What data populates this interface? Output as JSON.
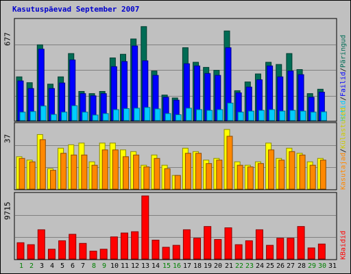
{
  "title": "Kasutuspäevad September 2007",
  "colors": {
    "background": "#c0c0c0",
    "pages": "#006c55",
    "files": "#0000ff",
    "hits": "#00ccff",
    "visits": "#ffff00",
    "sites": "#ff8800",
    "kbytes": "#ff0000",
    "weekend_label": "#008000",
    "title": "#0000cc"
  },
  "chart_data": [
    {
      "type": "bar",
      "name": "top",
      "ymax_label": "677",
      "ylim": [
        0,
        677
      ],
      "legend": [
        "Hitid",
        "Failid",
        "Päringud"
      ],
      "categories": [
        "1",
        "2",
        "3",
        "4",
        "5",
        "6",
        "7",
        "8",
        "9",
        "10",
        "11",
        "12",
        "13",
        "14",
        "15",
        "16",
        "17",
        "18",
        "19",
        "20",
        "21",
        "22",
        "23",
        "24",
        "25",
        "26",
        "27",
        "28",
        "29",
        "30"
      ],
      "series": [
        {
          "key": "pages",
          "values": [
            300,
            260,
            520,
            250,
            300,
            460,
            200,
            185,
            200,
            430,
            455,
            560,
            645,
            340,
            175,
            155,
            500,
            400,
            365,
            345,
            615,
            205,
            265,
            320,
            400,
            385,
            460,
            350,
            185,
            215
          ]
        },
        {
          "key": "files",
          "values": [
            272,
            220,
            490,
            220,
            258,
            416,
            185,
            170,
            185,
            370,
            405,
            512,
            410,
            310,
            160,
            140,
            390,
            375,
            323,
            310,
            500,
            190,
            230,
            280,
            375,
            300,
            340,
            315,
            160,
            195
          ]
        },
        {
          "key": "hits",
          "values": [
            58,
            62,
            100,
            42,
            58,
            102,
            58,
            38,
            48,
            75,
            82,
            85,
            90,
            80,
            48,
            40,
            85,
            75,
            70,
            75,
            120,
            58,
            65,
            70,
            75,
            65,
            70,
            65,
            58,
            60
          ]
        }
      ]
    },
    {
      "type": "bar",
      "name": "middle",
      "ymax_label": "37",
      "ylim": [
        0,
        37
      ],
      "legend": [
        "Külastused",
        "Kasutajad"
      ],
      "categories": [
        "1",
        "2",
        "3",
        "4",
        "5",
        "6",
        "7",
        "8",
        "9",
        "10",
        "11",
        "12",
        "13",
        "14",
        "15",
        "16",
        "17",
        "18",
        "19",
        "20",
        "21",
        "22",
        "23",
        "24",
        "25",
        "26",
        "27",
        "28",
        "29",
        "30"
      ],
      "series": [
        {
          "key": "visits",
          "values": [
            19,
            17,
            32,
            12,
            24,
            26,
            27,
            16,
            27,
            27,
            23,
            22,
            14,
            20,
            14,
            8,
            24,
            22,
            17,
            18,
            35,
            16,
            14,
            16,
            27,
            18,
            24,
            21,
            16,
            18
          ]
        },
        {
          "key": "sites",
          "values": [
            18,
            16,
            29,
            11,
            21,
            20,
            20,
            14,
            23,
            23,
            19,
            20,
            13,
            18,
            12,
            8,
            21,
            21,
            15,
            17,
            31,
            14,
            13,
            15,
            23,
            17,
            22,
            20,
            14,
            17
          ]
        }
      ]
    },
    {
      "type": "bar",
      "name": "bottom",
      "ymax_label": "9715",
      "ylim": [
        0,
        9715
      ],
      "legend": [
        "KBaidid"
      ],
      "categories": [
        "1",
        "2",
        "3",
        "4",
        "5",
        "6",
        "7",
        "8",
        "9",
        "10",
        "11",
        "12",
        "13",
        "14",
        "15",
        "16",
        "17",
        "18",
        "19",
        "20",
        "21",
        "22",
        "23",
        "24",
        "25",
        "26",
        "27",
        "28",
        "29",
        "30"
      ],
      "series": [
        {
          "key": "kbytes",
          "values": [
            2500,
            2200,
            4500,
            1500,
            2800,
            3800,
            2400,
            1200,
            1500,
            3400,
            4000,
            4200,
            9715,
            2900,
            1800,
            2100,
            4500,
            3200,
            5000,
            3000,
            4800,
            2200,
            2800,
            4500,
            2100,
            3200,
            3200,
            5000,
            1700,
            2300
          ]
        }
      ]
    }
  ],
  "x_axis": {
    "labels": [
      "1",
      "2",
      "3",
      "4",
      "5",
      "6",
      "7",
      "8",
      "9",
      "10",
      "11",
      "12",
      "13",
      "14",
      "15",
      "16",
      "17",
      "18",
      "19",
      "20",
      "21",
      "22",
      "23",
      "24",
      "25",
      "26",
      "27",
      "28",
      "29",
      "30",
      "31"
    ],
    "weekend_days": [
      "1",
      "2",
      "8",
      "9",
      "15",
      "16",
      "22",
      "23",
      "29",
      "30"
    ]
  },
  "legend_text": {
    "top": {
      "pages": "Päringud",
      "files": "Failid",
      "hits": "Hitid"
    },
    "middle": {
      "visits": "Külastused",
      "sites": "Kasutajad"
    },
    "bottom": {
      "kbytes": "KBaidid"
    },
    "sep": "/"
  }
}
